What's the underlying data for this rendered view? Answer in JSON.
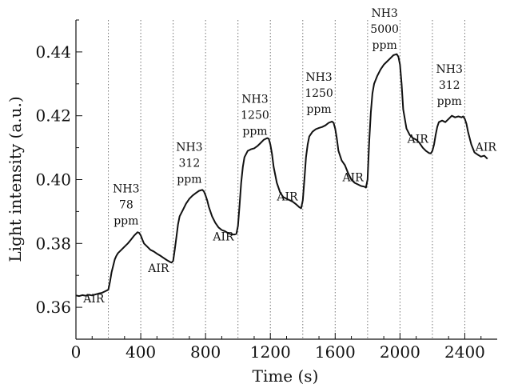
{
  "chart_data": {
    "type": "line",
    "title": "",
    "xlabel": "Time (s)",
    "ylabel": "Light intensity (a.u.)",
    "xlim": [
      0,
      2600
    ],
    "ylim": [
      0.35,
      0.45
    ],
    "x_ticks": [
      0,
      400,
      800,
      1200,
      1600,
      2000,
      2400
    ],
    "y_ticks": [
      0.36,
      0.38,
      0.4,
      0.42,
      0.44
    ],
    "x_tick_labels": [
      "0",
      "400",
      "800",
      "1200",
      "1600",
      "2000",
      "2400"
    ],
    "y_tick_labels": [
      "0.36",
      "0.38",
      "0.40",
      "0.42",
      "0.44"
    ],
    "grid": false,
    "vlines": [
      200,
      400,
      600,
      800,
      1000,
      1200,
      1400,
      1600,
      1800,
      2000,
      2200,
      2400
    ],
    "series": [
      {
        "x": [
          0,
          20,
          40,
          60,
          80,
          100,
          120,
          140,
          160,
          180,
          200,
          210,
          220,
          230,
          240,
          250,
          260,
          280,
          300,
          320,
          340,
          360,
          380,
          390,
          400,
          410,
          420,
          440,
          460,
          480,
          500,
          520,
          540,
          560,
          580,
          590,
          600,
          610,
          620,
          630,
          640,
          660,
          680,
          700,
          720,
          740,
          760,
          780,
          790,
          800,
          810,
          820,
          840,
          860,
          880,
          900,
          920,
          940,
          960,
          980,
          990,
          1000,
          1010,
          1020,
          1030,
          1040,
          1060,
          1080,
          1100,
          1120,
          1140,
          1160,
          1180,
          1190,
          1200,
          1210,
          1220,
          1240,
          1260,
          1280,
          1300,
          1320,
          1340,
          1360,
          1380,
          1390,
          1400,
          1410,
          1420,
          1430,
          1440,
          1460,
          1480,
          1500,
          1520,
          1540,
          1560,
          1580,
          1590,
          1600,
          1610,
          1620,
          1640,
          1660,
          1680,
          1700,
          1720,
          1740,
          1760,
          1780,
          1790,
          1800,
          1810,
          1820,
          1830,
          1840,
          1860,
          1880,
          1900,
          1920,
          1940,
          1960,
          1980,
          1990,
          2000,
          2010,
          2020,
          2040,
          2060,
          2080,
          2100,
          2120,
          2140,
          2160,
          2180,
          2190,
          2200,
          2210,
          2220,
          2230,
          2240,
          2260,
          2280,
          2300,
          2320,
          2340,
          2360,
          2380,
          2390,
          2400,
          2410,
          2420,
          2440,
          2460,
          2480,
          2500,
          2520,
          2540
        ],
        "y": [
          0.3637,
          0.3635,
          0.3638,
          0.3636,
          0.3639,
          0.3637,
          0.364,
          0.3643,
          0.3645,
          0.365,
          0.3655,
          0.368,
          0.371,
          0.373,
          0.375,
          0.3762,
          0.377,
          0.378,
          0.379,
          0.38,
          0.3812,
          0.3825,
          0.3835,
          0.3833,
          0.3825,
          0.3812,
          0.38,
          0.379,
          0.378,
          0.3775,
          0.3768,
          0.3762,
          0.3755,
          0.3748,
          0.3742,
          0.374,
          0.3745,
          0.378,
          0.382,
          0.386,
          0.3885,
          0.3905,
          0.3925,
          0.394,
          0.395,
          0.3958,
          0.3965,
          0.3968,
          0.3963,
          0.395,
          0.3935,
          0.3915,
          0.3885,
          0.3865,
          0.385,
          0.3842,
          0.3838,
          0.3832,
          0.3828,
          0.3828,
          0.383,
          0.3855,
          0.392,
          0.399,
          0.404,
          0.407,
          0.409,
          0.4095,
          0.4098,
          0.4105,
          0.4115,
          0.4125,
          0.413,
          0.4128,
          0.411,
          0.408,
          0.404,
          0.399,
          0.396,
          0.3945,
          0.394,
          0.3935,
          0.393,
          0.3922,
          0.3913,
          0.391,
          0.3935,
          0.4,
          0.407,
          0.411,
          0.4135,
          0.415,
          0.4158,
          0.4162,
          0.4165,
          0.417,
          0.4178,
          0.4182,
          0.4178,
          0.416,
          0.413,
          0.409,
          0.406,
          0.4045,
          0.402,
          0.4,
          0.399,
          0.3985,
          0.398,
          0.3978,
          0.3975,
          0.4,
          0.412,
          0.421,
          0.427,
          0.43,
          0.4325,
          0.4345,
          0.436,
          0.437,
          0.438,
          0.439,
          0.4393,
          0.4385,
          0.436,
          0.43,
          0.422,
          0.416,
          0.414,
          0.413,
          0.4125,
          0.4115,
          0.41,
          0.409,
          0.4083,
          0.4082,
          0.409,
          0.411,
          0.414,
          0.4165,
          0.418,
          0.4185,
          0.418,
          0.419,
          0.42,
          0.4195,
          0.4198,
          0.4195,
          0.4198,
          0.419,
          0.4175,
          0.415,
          0.411,
          0.4085,
          0.4078,
          0.4072,
          0.4075,
          0.4065
        ]
      }
    ],
    "annotations": [
      {
        "lines": [
          "AIR"
        ],
        "x": 110,
        "y": 0.3615
      },
      {
        "lines": [
          "NH3",
          "78",
          "ppm"
        ],
        "x": 310,
        "y": 0.396
      },
      {
        "lines": [
          "AIR"
        ],
        "x": 510,
        "y": 0.371
      },
      {
        "lines": [
          "NH3",
          "312",
          "ppm"
        ],
        "x": 700,
        "y": 0.409
      },
      {
        "lines": [
          "AIR"
        ],
        "x": 910,
        "y": 0.381
      },
      {
        "lines": [
          "NH3",
          "1250",
          "ppm"
        ],
        "x": 1105,
        "y": 0.424
      },
      {
        "lines": [
          "AIR"
        ],
        "x": 1305,
        "y": 0.3935
      },
      {
        "lines": [
          "NH3",
          "1250",
          "ppm"
        ],
        "x": 1500,
        "y": 0.431
      },
      {
        "lines": [
          "AIR"
        ],
        "x": 1710,
        "y": 0.3995
      },
      {
        "lines": [
          "NH3",
          "5000",
          "ppm"
        ],
        "x": 1905,
        "y": 0.451
      },
      {
        "lines": [
          "AIR"
        ],
        "x": 2110,
        "y": 0.4115
      },
      {
        "lines": [
          "NH3",
          "312",
          "ppm"
        ],
        "x": 2305,
        "y": 0.4335
      },
      {
        "lines": [
          "AIR"
        ],
        "x": 2530,
        "y": 0.409
      }
    ]
  }
}
